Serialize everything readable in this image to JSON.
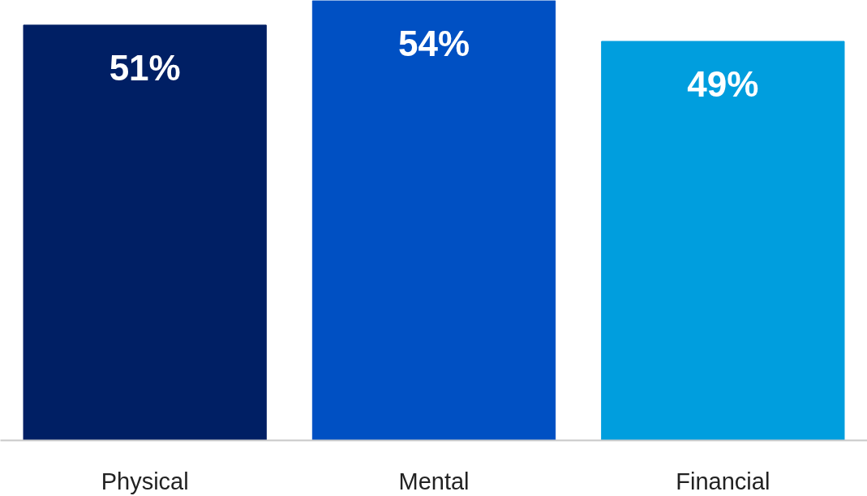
{
  "chart_data": {
    "type": "bar",
    "categories": [
      "Physical",
      "Mental",
      "Financial"
    ],
    "values": [
      51,
      54,
      49
    ],
    "value_labels": [
      "51%",
      "54%",
      "49%"
    ],
    "colors": [
      "#001f64",
      "#0050c3",
      "#009ede"
    ],
    "tick_labels": "x"
  }
}
